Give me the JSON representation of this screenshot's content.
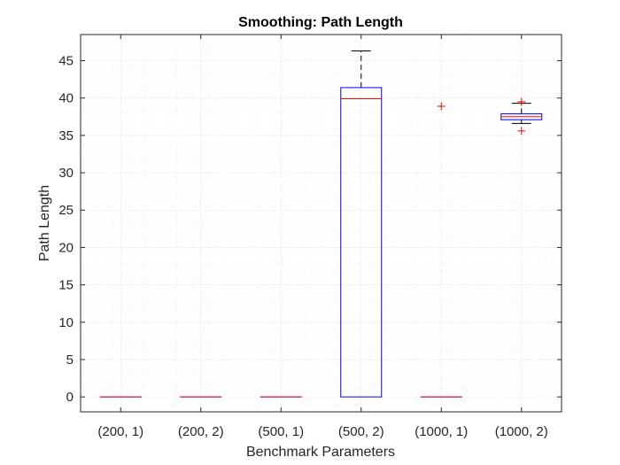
{
  "chart_data": {
    "type": "box",
    "title": "Smoothing: Path Length",
    "xlabel": "Benchmark Parameters",
    "ylabel": "Path Length",
    "ylim": [
      -2,
      48.5
    ],
    "yticks": [
      0,
      5,
      10,
      15,
      20,
      25,
      30,
      35,
      40,
      45
    ],
    "categories": [
      "(200, 1)",
      "(200, 2)",
      "(500, 1)",
      "(500, 2)",
      "(1000, 1)",
      "(1000, 2)"
    ],
    "grid": true,
    "minor_grid": true,
    "boxes": [
      {
        "category": "(200, 1)",
        "q1": 0,
        "median": 0,
        "q3": 0,
        "whisker_low": 0,
        "whisker_high": 0,
        "outliers": []
      },
      {
        "category": "(200, 2)",
        "q1": 0,
        "median": 0,
        "q3": 0,
        "whisker_low": 0,
        "whisker_high": 0,
        "outliers": []
      },
      {
        "category": "(500, 1)",
        "q1": 0,
        "median": 0,
        "q3": 0,
        "whisker_low": 0,
        "whisker_high": 0,
        "outliers": []
      },
      {
        "category": "(500, 2)",
        "q1": 0,
        "median": 39.9,
        "q3": 41.4,
        "whisker_low": 0,
        "whisker_high": 46.3,
        "outliers": []
      },
      {
        "category": "(1000, 1)",
        "q1": 0,
        "median": 0,
        "q3": 0,
        "whisker_low": 0,
        "whisker_high": 0,
        "outliers": [
          38.9
        ]
      },
      {
        "category": "(1000, 2)",
        "q1": 37.1,
        "median": 37.5,
        "q3": 37.9,
        "whisker_low": 36.6,
        "whisker_high": 39.3,
        "outliers": [
          39.5,
          35.6
        ]
      }
    ],
    "colors": {
      "box": "#0000ff",
      "median": "#ff0000",
      "whisker": "#000000",
      "outlier": "#ff0000",
      "axis": "#262626",
      "grid": "#dcdcdc"
    }
  }
}
